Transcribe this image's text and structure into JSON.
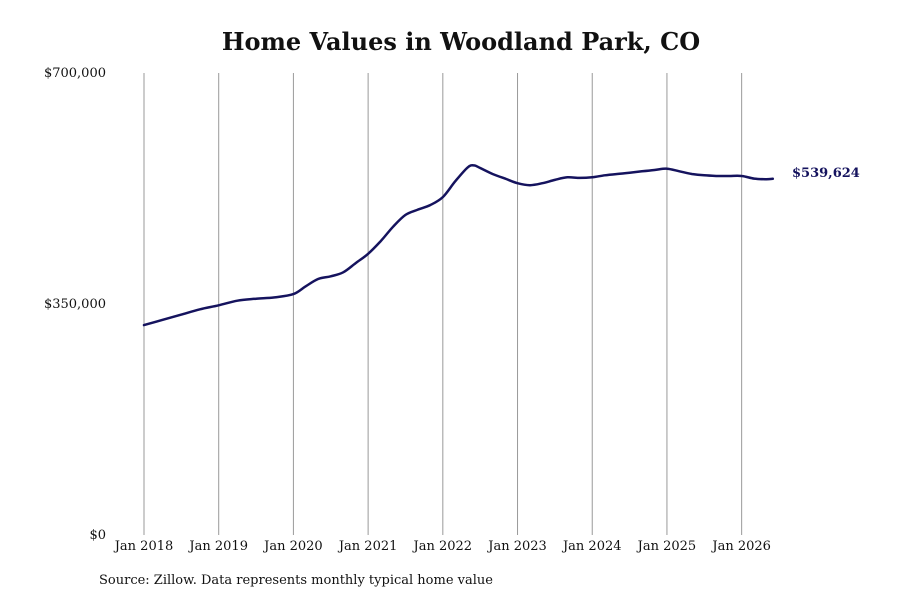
{
  "chart_data": {
    "type": "line",
    "title": "Home Values in Woodland Park, CO",
    "xlabel": "",
    "ylabel": "",
    "ylim": [
      0,
      700000
    ],
    "xlim": [
      "2018-01",
      "2026-07"
    ],
    "yticks": [
      0,
      350000,
      700000
    ],
    "ytick_labels": [
      "$0",
      "$350,000",
      "$700,000"
    ],
    "xtick_labels": [
      "Jan 2018",
      "Jan 2019",
      "Jan 2020",
      "Jan 2021",
      "Jan 2022",
      "Jan 2023",
      "Jan 2024",
      "Jan 2025",
      "Jan 2026"
    ],
    "grid": "vertical",
    "line_color": "#15135e",
    "end_label": "$539,624",
    "series": [
      {
        "x": [
          "2018-01",
          "2018-04",
          "2018-07",
          "2018-10",
          "2019-01",
          "2019-04",
          "2019-07",
          "2019-10",
          "2020-01",
          "2020-03",
          "2020-05",
          "2020-07",
          "2020-09",
          "2020-11",
          "2021-01",
          "2021-03",
          "2021-05",
          "2021-07",
          "2021-09",
          "2021-11",
          "2022-01",
          "2022-03",
          "2022-05",
          "2022-06",
          "2022-07",
          "2022-09",
          "2022-11",
          "2023-01",
          "2023-03",
          "2023-05",
          "2023-07",
          "2023-09",
          "2023-11",
          "2024-01",
          "2024-03",
          "2024-05",
          "2024-07",
          "2024-09",
          "2024-11",
          "2025-01",
          "2025-03",
          "2025-05",
          "2025-07",
          "2025-09",
          "2025-11",
          "2026-01",
          "2026-03",
          "2026-05",
          "2026-06"
        ],
        "values": [
          318000,
          326000,
          334000,
          342000,
          348000,
          355000,
          358000,
          360000,
          365000,
          377000,
          388000,
          392000,
          398000,
          412000,
          426000,
          445000,
          467000,
          485000,
          493000,
          500000,
          512000,
          536000,
          557000,
          560000,
          556000,
          547000,
          540000,
          533000,
          530000,
          533000,
          538000,
          542000,
          541000,
          542000,
          545000,
          547000,
          549000,
          551000,
          553000,
          555000,
          551000,
          547000,
          545000,
          544000,
          544000,
          544000,
          540000,
          539000,
          539624
        ]
      }
    ]
  }
}
